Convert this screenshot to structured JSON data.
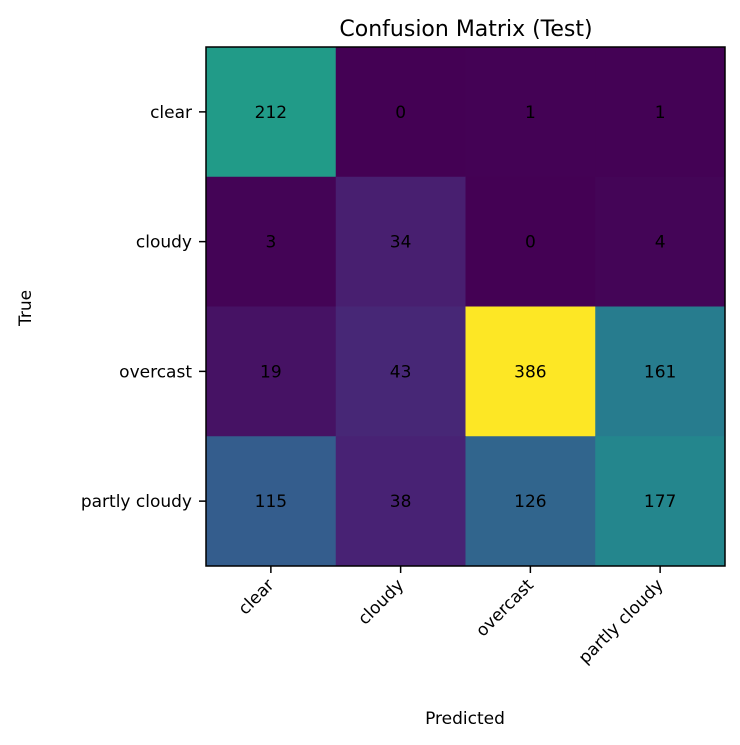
{
  "chart_data": {
    "type": "heatmap",
    "title": "Confusion Matrix (Test)",
    "xlabel": "Predicted",
    "ylabel": "True",
    "x_categories": [
      "clear",
      "cloudy",
      "overcast",
      "partly cloudy"
    ],
    "y_categories": [
      "clear",
      "cloudy",
      "overcast",
      "partly cloudy"
    ],
    "values": [
      [
        212,
        0,
        1,
        1
      ],
      [
        3,
        34,
        0,
        4
      ],
      [
        19,
        43,
        386,
        161
      ],
      [
        115,
        38,
        126,
        177
      ]
    ],
    "colormap": "viridis",
    "value_range": [
      0,
      386
    ],
    "grid": false,
    "colors": {
      "cell_text": "#000000",
      "frame": "#000000"
    }
  }
}
